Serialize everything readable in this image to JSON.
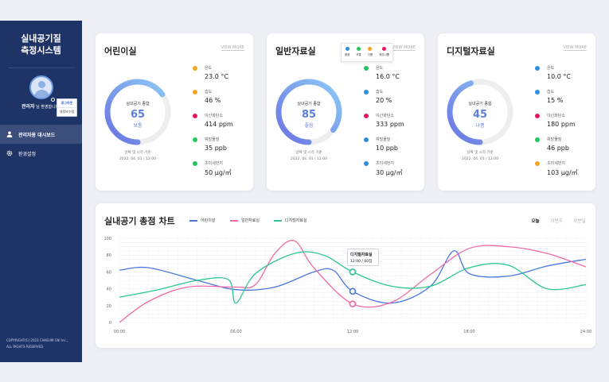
{
  "app": {
    "title_line1": "실내공기질",
    "title_line2": "측정시스템"
  },
  "user": {
    "name": "관리자",
    "suffix": "님 환영합니다",
    "menu": [
      "로그아웃",
      "내정보수정"
    ]
  },
  "nav": [
    {
      "label": "관리자용 대시보드",
      "icon": "user-icon",
      "active": true
    },
    {
      "label": "환경설정",
      "icon": "gear-icon",
      "active": false
    }
  ],
  "copyright": [
    "COPYRIGHT(C) 2023 CHAEUM CNI Inc.,",
    "ALL RIGHTS RESERVED."
  ],
  "view_more": "VIEW MORE",
  "colors": {
    "good": "#2d8de3",
    "normal": "#22c55e",
    "bad": "#f5a524",
    "very_bad": "#e8175d"
  },
  "rooms": [
    {
      "name": "어린이실",
      "gauge_label": "실내공기 종합",
      "score": "65",
      "status": "보통",
      "score_fraction": 0.65,
      "status_color": "#5b7fdf",
      "measure_label": "날짜 및 시각 기준",
      "measure_time": "2022. 04. 01 / 12:00",
      "metrics": [
        {
          "name": "온도",
          "value": "23.0 °C",
          "color": "#f5a524"
        },
        {
          "name": "습도",
          "value": "46 %",
          "color": "#f5a524"
        },
        {
          "name": "이산화탄소",
          "value": "414 ppm",
          "color": "#e8175d"
        },
        {
          "name": "휘발물질",
          "value": "35 ppb",
          "color": "#22c55e"
        },
        {
          "name": "초미세먼지",
          "value": "50 μg/㎥",
          "color": "#22c55e"
        }
      ]
    },
    {
      "name": "일반자료실",
      "gauge_label": "실내공기 종합",
      "score": "85",
      "status": "좋음",
      "score_fraction": 0.85,
      "status_color": "#5b7fdf",
      "measure_label": "날짜 및 시각 기준",
      "measure_time": "2022. 04. 01 / 12:00",
      "metrics": [
        {
          "name": "온도",
          "value": "16.0 °C",
          "color": "#22c55e"
        },
        {
          "name": "습도",
          "value": "20 %",
          "color": "#2d8de3"
        },
        {
          "name": "이산화탄소",
          "value": "333 ppm",
          "color": "#e8175d"
        },
        {
          "name": "휘발물질",
          "value": "10 ppb",
          "color": "#2d8de3"
        },
        {
          "name": "초미세먼지",
          "value": "30 μg/㎥",
          "color": "#2d8de3"
        }
      ],
      "legend_popup": [
        {
          "label": "좋음",
          "color": "#2d8de3"
        },
        {
          "label": "보통",
          "color": "#22c55e"
        },
        {
          "label": "나쁨",
          "color": "#f5a524"
        },
        {
          "label": "매우나쁨",
          "color": "#e8175d"
        }
      ]
    },
    {
      "name": "디지털자료실",
      "gauge_label": "실내공기 종합",
      "score": "45",
      "status": "나쁨",
      "score_fraction": 0.45,
      "status_color": "#5b7fdf",
      "measure_label": "날짜 및 시각 기준",
      "measure_time": "2022. 04. 01 / 12:00",
      "metrics": [
        {
          "name": "온도",
          "value": "10.0 °C",
          "color": "#2d8de3"
        },
        {
          "name": "습도",
          "value": "15 %",
          "color": "#2d8de3"
        },
        {
          "name": "이산화탄소",
          "value": "180 ppm",
          "color": "#e8175d"
        },
        {
          "name": "휘발물질",
          "value": "46 ppb",
          "color": "#22c55e"
        },
        {
          "name": "초미세먼지",
          "value": "103 μg/㎥",
          "color": "#f5a524"
        }
      ]
    }
  ],
  "chart_section": {
    "title": "실내공기 총점 차트",
    "tabs": [
      "오늘",
      "이번주",
      "이번달"
    ],
    "active_tab": "오늘",
    "tooltip": {
      "title": "디지털자료실",
      "detail": "12:00 / 60점"
    }
  },
  "chart_data": {
    "type": "line",
    "xlim": [
      0,
      24
    ],
    "ylim": [
      0,
      100
    ],
    "yticks": [
      0,
      20,
      40,
      60,
      80,
      100
    ],
    "xticks": [
      "00:00",
      "06:00",
      "12:00",
      "18:00",
      "24:00"
    ],
    "xtick_values": [
      0,
      6,
      12,
      18,
      24
    ],
    "grid": true,
    "legend_position": "top",
    "series": [
      {
        "name": "어린이실",
        "color": "#4a78e0",
        "x": [
          0,
          1.5,
          4,
          6,
          8,
          10,
          11,
          12,
          14,
          16,
          17.2,
          18,
          20,
          22,
          24
        ],
        "y": [
          62,
          65,
          50,
          39,
          42,
          60,
          62,
          37,
          23,
          43,
          85,
          58,
          55,
          67,
          75
        ],
        "marker_at": 12
      },
      {
        "name": "일반자료실",
        "color": "#ef6aa5",
        "x": [
          0,
          1.5,
          3.5,
          6,
          7,
          8,
          9,
          10,
          12,
          14,
          16,
          18,
          20,
          22,
          24
        ],
        "y": [
          0,
          25,
          42,
          42,
          45,
          82,
          97,
          65,
          22,
          24,
          57,
          88,
          90,
          82,
          66
        ],
        "marker_at": 12
      },
      {
        "name": "디지털자료실",
        "color": "#2dc88f",
        "x": [
          0,
          2,
          4,
          5.6,
          6,
          7,
          9,
          10.5,
          12,
          14,
          16,
          18,
          20,
          22,
          24
        ],
        "y": [
          30,
          39,
          50,
          51,
          23,
          58,
          82,
          80,
          60,
          43,
          43,
          65,
          68,
          40,
          45
        ],
        "marker_at": 12
      }
    ]
  }
}
